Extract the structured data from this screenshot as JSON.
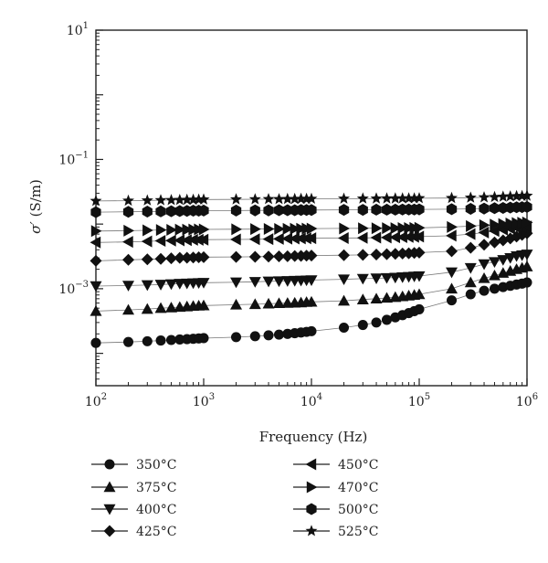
{
  "chart_data": {
    "type": "scatter",
    "xlabel": "Frequency (Hz)",
    "ylabel_symbol": "σ′",
    "ylabel_unit": "(S/m)",
    "x_scale": "log",
    "y_scale": "log",
    "xlim": [
      100,
      1000000
    ],
    "ylim": [
      3.16e-05,
      10
    ],
    "x_ticks": [
      {
        "value": 100,
        "base": "10",
        "exp": "2"
      },
      {
        "value": 1000,
        "base": "10",
        "exp": "3"
      },
      {
        "value": 10000,
        "base": "10",
        "exp": "4"
      },
      {
        "value": 100000,
        "base": "10",
        "exp": "5"
      },
      {
        "value": 1000000,
        "base": "10",
        "exp": "6"
      }
    ],
    "y_ticks": [
      {
        "value": 0.001,
        "base": "10",
        "exp": "−3"
      },
      {
        "value": 0.1,
        "base": "10",
        "exp": "−1"
      },
      {
        "value": 10,
        "base": "10",
        "exp": "1"
      }
    ],
    "x": [
      100,
      200,
      300,
      400,
      500,
      600,
      700,
      800,
      900,
      1000,
      2000,
      3000,
      4000,
      5000,
      6000,
      7000,
      8000,
      9000,
      10000,
      20000,
      30000,
      40000,
      50000,
      60000,
      70000,
      80000,
      90000,
      100000,
      200000,
      300000,
      400000,
      500000,
      600000,
      700000,
      800000,
      900000,
      1000000
    ],
    "series": [
      {
        "name": "350°C",
        "marker": "circle",
        "values": [
          0.000145,
          0.00015,
          0.000154,
          0.000158,
          0.000161,
          0.000164,
          0.000166,
          0.000168,
          0.00017,
          0.000172,
          0.000178,
          0.000184,
          0.00019,
          0.000195,
          0.0002,
          0.000205,
          0.00021,
          0.000215,
          0.00022,
          0.00025,
          0.000275,
          0.0003,
          0.00033,
          0.00036,
          0.00039,
          0.00042,
          0.00045,
          0.00048,
          0.00066,
          0.00082,
          0.00093,
          0.001,
          0.00106,
          0.00111,
          0.00116,
          0.0012,
          0.00125
        ]
      },
      {
        "name": "375°C",
        "marker": "triangle-up",
        "values": [
          0.00045,
          0.00047,
          0.000485,
          0.0005,
          0.00051,
          0.00052,
          0.00053,
          0.00054,
          0.000545,
          0.00055,
          0.000565,
          0.000575,
          0.000585,
          0.000595,
          0.0006,
          0.000605,
          0.00061,
          0.00062,
          0.000625,
          0.00065,
          0.00068,
          0.0007,
          0.00072,
          0.00074,
          0.00076,
          0.00078,
          0.0008,
          0.00082,
          0.001,
          0.00125,
          0.00145,
          0.0016,
          0.00175,
          0.00188,
          0.002,
          0.0021,
          0.0022
        ]
      },
      {
        "name": "400°C",
        "marker": "triangle-down",
        "values": [
          0.0011,
          0.00112,
          0.00114,
          0.00116,
          0.00118,
          0.0012,
          0.00121,
          0.00122,
          0.00123,
          0.00124,
          0.00126,
          0.00128,
          0.0013,
          0.00131,
          0.00132,
          0.00133,
          0.00134,
          0.00135,
          0.00136,
          0.0014,
          0.00143,
          0.00145,
          0.00147,
          0.00149,
          0.00151,
          0.00153,
          0.00155,
          0.00157,
          0.0018,
          0.0021,
          0.0024,
          0.0026,
          0.0028,
          0.003,
          0.0032,
          0.0033,
          0.0034
        ]
      },
      {
        "name": "425°C",
        "marker": "diamond",
        "values": [
          0.0027,
          0.0028,
          0.00285,
          0.0029,
          0.00295,
          0.003,
          0.00302,
          0.00304,
          0.00306,
          0.00308,
          0.0031,
          0.00312,
          0.00314,
          0.00316,
          0.00318,
          0.0032,
          0.00322,
          0.00324,
          0.00326,
          0.0033,
          0.00334,
          0.00338,
          0.00342,
          0.00346,
          0.0035,
          0.00354,
          0.00358,
          0.00362,
          0.0038,
          0.0043,
          0.0048,
          0.0052,
          0.0056,
          0.006,
          0.0064,
          0.0068,
          0.0072
        ]
      },
      {
        "name": "450°C",
        "marker": "triangle-left",
        "values": [
          0.0052,
          0.0053,
          0.0054,
          0.0055,
          0.00555,
          0.0056,
          0.00565,
          0.0057,
          0.00572,
          0.00574,
          0.00578,
          0.00582,
          0.00586,
          0.0059,
          0.00594,
          0.00598,
          0.006,
          0.00602,
          0.00604,
          0.00608,
          0.00612,
          0.00616,
          0.0062,
          0.00624,
          0.00628,
          0.00632,
          0.00636,
          0.0064,
          0.0066,
          0.007,
          0.0074,
          0.0078,
          0.0082,
          0.0085,
          0.0088,
          0.009,
          0.0092
        ]
      },
      {
        "name": "470°C",
        "marker": "triangle-right",
        "values": [
          0.0078,
          0.0079,
          0.008,
          0.0081,
          0.00815,
          0.0082,
          0.00822,
          0.00824,
          0.00826,
          0.00828,
          0.00832,
          0.00836,
          0.0084,
          0.00842,
          0.00844,
          0.00846,
          0.00848,
          0.0085,
          0.00852,
          0.00856,
          0.0086,
          0.00862,
          0.00864,
          0.00866,
          0.00868,
          0.0087,
          0.00872,
          0.00874,
          0.009,
          0.0093,
          0.0096,
          0.0098,
          0.01,
          0.0102,
          0.0104,
          0.0105,
          0.0106
        ]
      },
      {
        "name": "500°C",
        "marker": "hexagon",
        "values": [
          0.0153,
          0.0155,
          0.0156,
          0.0157,
          0.0158,
          0.0159,
          0.016,
          0.0161,
          0.0161,
          0.0162,
          0.0162,
          0.0163,
          0.0163,
          0.0164,
          0.0164,
          0.0164,
          0.0165,
          0.0165,
          0.0165,
          0.0166,
          0.0166,
          0.0167,
          0.0167,
          0.0167,
          0.0168,
          0.0168,
          0.0168,
          0.0169,
          0.017,
          0.0172,
          0.0174,
          0.0176,
          0.0178,
          0.018,
          0.0182,
          0.0183,
          0.0184
        ]
      },
      {
        "name": "525°C",
        "marker": "star",
        "values": [
          0.0228,
          0.023,
          0.0232,
          0.0234,
          0.0235,
          0.0236,
          0.0237,
          0.0238,
          0.0239,
          0.024,
          0.0241,
          0.0242,
          0.0243,
          0.0243,
          0.0244,
          0.0244,
          0.0245,
          0.0245,
          0.0246,
          0.0247,
          0.0248,
          0.0248,
          0.0249,
          0.0249,
          0.025,
          0.025,
          0.025,
          0.0251,
          0.0253,
          0.0256,
          0.0259,
          0.0262,
          0.0265,
          0.0268,
          0.027,
          0.0272,
          0.0274
        ]
      }
    ]
  }
}
